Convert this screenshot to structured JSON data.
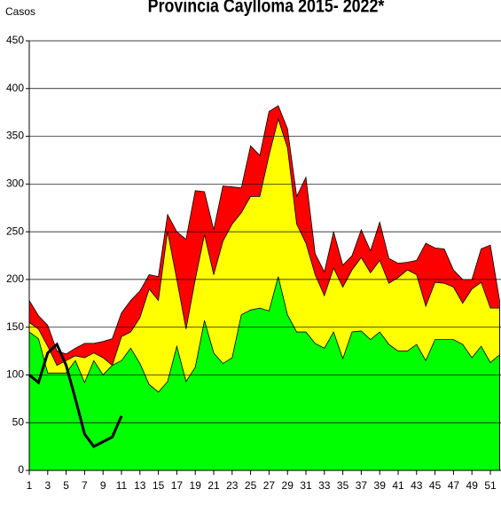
{
  "chart_data": {
    "type": "area",
    "title": "Provincia Caylloma 2015- 2022*",
    "y_label": "Casos",
    "x": [
      1,
      2,
      3,
      4,
      5,
      6,
      7,
      8,
      9,
      10,
      11,
      12,
      13,
      14,
      15,
      16,
      17,
      18,
      19,
      20,
      21,
      22,
      23,
      24,
      25,
      26,
      27,
      28,
      29,
      30,
      31,
      32,
      33,
      34,
      35,
      36,
      37,
      38,
      39,
      40,
      41,
      42,
      43,
      44,
      45,
      46,
      47,
      48,
      49,
      50,
      51,
      52
    ],
    "xlim": [
      1,
      52
    ],
    "xticks": [
      1,
      3,
      5,
      7,
      9,
      11,
      13,
      15,
      17,
      19,
      21,
      23,
      25,
      27,
      29,
      31,
      33,
      35,
      37,
      39,
      41,
      43,
      45,
      47,
      49,
      51
    ],
    "ylim": [
      0,
      450
    ],
    "yticks": [
      0,
      50,
      100,
      150,
      200,
      250,
      300,
      350,
      400,
      450
    ],
    "grid": true,
    "series": [
      {
        "color": "#ff0000",
        "kind": "area",
        "values": [
          178,
          162,
          152,
          125,
          122,
          128,
          133,
          133,
          135,
          138,
          165,
          178,
          188,
          205,
          203,
          268,
          250,
          242,
          293,
          292,
          252,
          298,
          297,
          296,
          340,
          330,
          376,
          382,
          358,
          287,
          307,
          227,
          208,
          250,
          215,
          225,
          252,
          230,
          260,
          222,
          217,
          218,
          220,
          238,
          233,
          232,
          210,
          200,
          200,
          232,
          236,
          178
        ]
      },
      {
        "color": "#ffff00",
        "kind": "area",
        "values": [
          155,
          148,
          130,
          110,
          115,
          120,
          118,
          123,
          118,
          110,
          140,
          145,
          160,
          190,
          178,
          250,
          200,
          148,
          200,
          247,
          205,
          240,
          258,
          270,
          287,
          287,
          330,
          368,
          338,
          258,
          238,
          205,
          183,
          212,
          192,
          210,
          223,
          207,
          220,
          196,
          202,
          210,
          205,
          172,
          197,
          196,
          192,
          175,
          190,
          197,
          170,
          170
        ]
      },
      {
        "color": "#00ff00",
        "kind": "area",
        "values": [
          145,
          138,
          102,
          102,
          102,
          115,
          92,
          115,
          100,
          110,
          115,
          128,
          112,
          90,
          82,
          93,
          130,
          93,
          108,
          157,
          123,
          112,
          118,
          163,
          168,
          170,
          167,
          203,
          163,
          145,
          145,
          133,
          128,
          145,
          117,
          145,
          146,
          137,
          145,
          132,
          125,
          125,
          132,
          115,
          137,
          137,
          137,
          132,
          118,
          130,
          113,
          121
        ]
      },
      {
        "color": "#000000",
        "kind": "line",
        "values": [
          100,
          92,
          123,
          132,
          110,
          75,
          38,
          25,
          30,
          35,
          57,
          null,
          null,
          null,
          null,
          null,
          null,
          null,
          null,
          null,
          null,
          null,
          null,
          null,
          null,
          null,
          null,
          null,
          null,
          null,
          null,
          null,
          null,
          null,
          null,
          null,
          null,
          null,
          null,
          null,
          null,
          null,
          null,
          null,
          null,
          null,
          null,
          null,
          null,
          null,
          null,
          null
        ]
      }
    ]
  }
}
